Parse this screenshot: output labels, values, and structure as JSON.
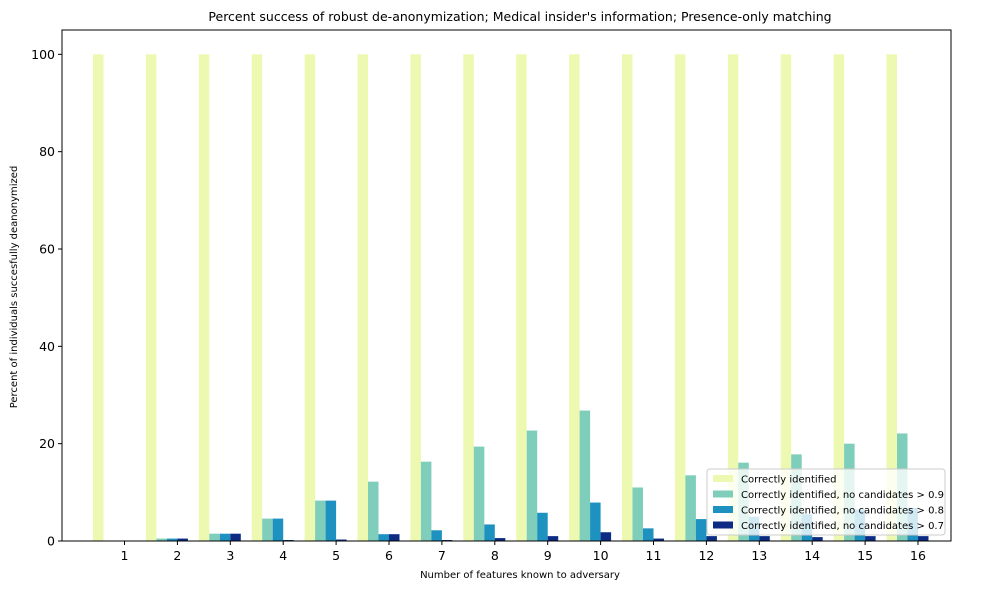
{
  "chart_data": {
    "type": "bar",
    "title": "Percent success of robust de-anonymization; Medical insider's information; Presence-only matching",
    "xlabel": "Number of features known to adversary",
    "ylabel": "Percent of individuals succesfully deanonymized",
    "categories": [
      "1",
      "2",
      "3",
      "4",
      "5",
      "6",
      "7",
      "8",
      "9",
      "10",
      "11",
      "12",
      "13",
      "14",
      "15",
      "16"
    ],
    "ylim": [
      0,
      105
    ],
    "yticks": [
      0,
      20,
      40,
      60,
      80,
      100
    ],
    "legend_position": "lower-right",
    "series": [
      {
        "name": "Correctly identified",
        "color": "#edf8b1",
        "values": [
          100,
          100,
          100,
          100,
          100,
          100,
          100,
          100,
          100,
          100,
          100,
          100,
          100,
          100,
          100,
          100
        ]
      },
      {
        "name": "Correctly identified, no candidates > 0.9",
        "color": "#7fcdbb",
        "values": [
          0,
          0.5,
          1.5,
          4.6,
          8.3,
          12.2,
          16.3,
          19.4,
          22.7,
          26.8,
          11.0,
          13.5,
          16.1,
          17.8,
          20.0,
          22.1
        ]
      },
      {
        "name": "Correctly identified, no candidates > 0.8",
        "color": "#1d91c0",
        "values": [
          0,
          0.5,
          1.5,
          4.6,
          8.3,
          1.4,
          2.2,
          3.4,
          5.8,
          7.9,
          2.6,
          4.5,
          5.0,
          5.5,
          6.5,
          6.8
        ]
      },
      {
        "name": "Correctly identified, no candidates > 0.7",
        "color": "#0c2c84",
        "values": [
          0,
          0.5,
          1.5,
          0.2,
          0.3,
          1.4,
          0.2,
          0.6,
          1.0,
          1.8,
          0.5,
          1.0,
          1.0,
          0.8,
          1.0,
          1.0
        ]
      }
    ]
  }
}
